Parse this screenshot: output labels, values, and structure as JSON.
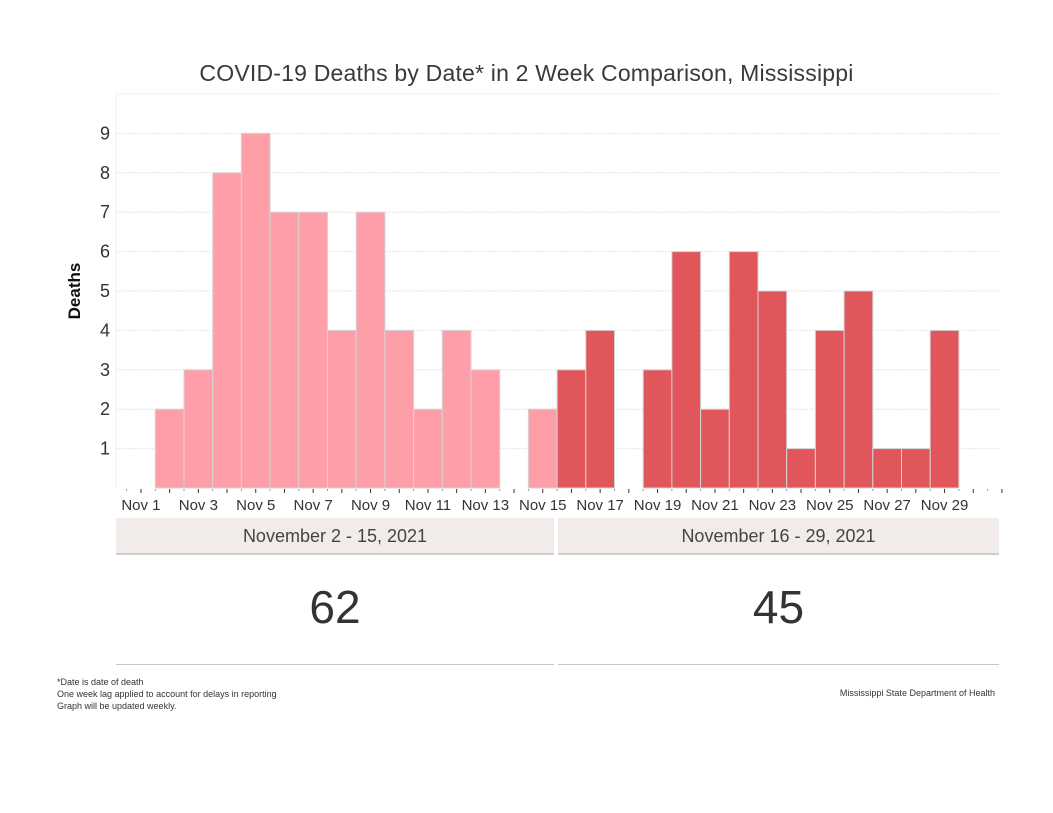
{
  "chart_data": {
    "type": "bar",
    "title": "COVID-19 Deaths by Date* in 2 Week Comparison, Mississippi",
    "xlabel": "",
    "ylabel": "Deaths",
    "ylim": [
      0,
      10
    ],
    "yticks": [
      1,
      2,
      3,
      4,
      5,
      6,
      7,
      8,
      9
    ],
    "grid": true,
    "x_day_range": [
      1,
      31
    ],
    "xtick_labels": [
      "Nov 1",
      "Nov 3",
      "Nov 5",
      "Nov 7",
      "Nov 9",
      "Nov 11",
      "Nov 13",
      "Nov 15",
      "Nov 17",
      "Nov 19",
      "Nov 21",
      "Nov 23",
      "Nov 25",
      "Nov 27",
      "Nov 29"
    ],
    "xtick_days": [
      1,
      3,
      5,
      7,
      9,
      11,
      13,
      15,
      17,
      19,
      21,
      23,
      25,
      27,
      29
    ],
    "series": [
      {
        "name": "November 2 - 15, 2021",
        "color": "#fe9ea8",
        "days": [
          2,
          3,
          4,
          5,
          6,
          7,
          8,
          9,
          10,
          11,
          12,
          13,
          14,
          15
        ],
        "values": [
          2,
          3,
          8,
          9,
          7,
          7,
          4,
          7,
          4,
          2,
          4,
          3,
          0,
          2
        ]
      },
      {
        "name": "November 16 - 29, 2021",
        "color": "#e0565b",
        "days": [
          16,
          17,
          18,
          19,
          20,
          21,
          22,
          23,
          24,
          25,
          26,
          27,
          28,
          29
        ],
        "values": [
          3,
          4,
          0,
          3,
          6,
          2,
          6,
          5,
          1,
          4,
          5,
          1,
          1,
          4
        ]
      }
    ]
  },
  "panels": [
    {
      "header": "November 2 - 15, 2021",
      "total": "62"
    },
    {
      "header": "November 16 - 29, 2021",
      "total": "45"
    }
  ],
  "footnotes": [
    "*Date is date of death",
    "One week lag applied to account for delays in reporting",
    "Graph will be updated weekly."
  ],
  "credit": "Mississippi State Department of Health"
}
